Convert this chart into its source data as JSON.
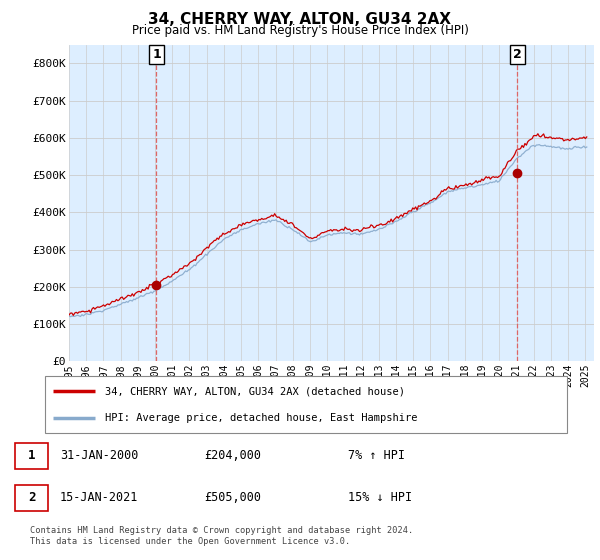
{
  "title": "34, CHERRY WAY, ALTON, GU34 2AX",
  "subtitle": "Price paid vs. HM Land Registry's House Price Index (HPI)",
  "ylim": [
    0,
    850000
  ],
  "yticks": [
    0,
    100000,
    200000,
    300000,
    400000,
    500000,
    600000,
    700000,
    800000
  ],
  "ytick_labels": [
    "£0",
    "£100K",
    "£200K",
    "£300K",
    "£400K",
    "£500K",
    "£600K",
    "£700K",
    "£800K"
  ],
  "sale1_year": 2000.08,
  "sale1_price": 204000,
  "sale2_year": 2021.04,
  "sale2_price": 505000,
  "legend_line1": "34, CHERRY WAY, ALTON, GU34 2AX (detached house)",
  "legend_line2": "HPI: Average price, detached house, East Hampshire",
  "annot1_date": "31-JAN-2000",
  "annot1_price": "£204,000",
  "annot1_hpi": "7% ↑ HPI",
  "annot2_date": "15-JAN-2021",
  "annot2_price": "£505,000",
  "annot2_hpi": "15% ↓ HPI",
  "footer": "Contains HM Land Registry data © Crown copyright and database right 2024.\nThis data is licensed under the Open Government Licence v3.0.",
  "line_color_red": "#cc0000",
  "line_color_blue": "#88aacc",
  "vline_color": "#dd6666",
  "grid_color": "#cccccc",
  "bg_color": "#ddeeff",
  "plot_bg_color": "#ddeeff",
  "fig_bg_color": "#ffffff",
  "xlim_left": 1995.0,
  "xlim_right": 2025.5
}
